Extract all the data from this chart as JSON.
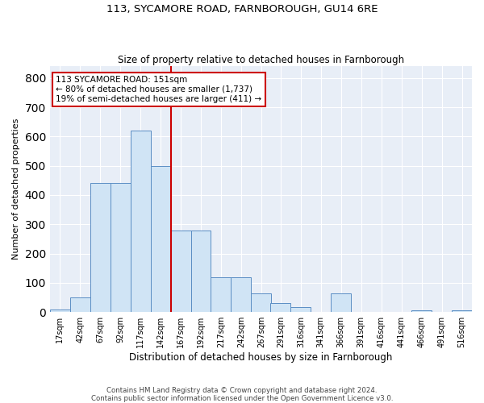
{
  "title": "113, SYCAMORE ROAD, FARNBOROUGH, GU14 6RE",
  "subtitle": "Size of property relative to detached houses in Farnborough",
  "xlabel": "Distribution of detached houses by size in Farnborough",
  "ylabel": "Number of detached properties",
  "bins_start": [
    17,
    42,
    67,
    92,
    117,
    142,
    167,
    192,
    217,
    242,
    267,
    291,
    316,
    341,
    366,
    391,
    416,
    441,
    466,
    491,
    516
  ],
  "counts": [
    10,
    50,
    440,
    440,
    620,
    500,
    280,
    280,
    120,
    120,
    65,
    30,
    18,
    0,
    65,
    0,
    0,
    0,
    7,
    0,
    5
  ],
  "bin_width": 25,
  "bar_facecolor": "#d0e4f5",
  "bar_edgecolor": "#5b8ec4",
  "vline_x": 167,
  "vline_color": "#cc0000",
  "annotation_text": "113 SYCAMORE ROAD: 151sqm\n← 80% of detached houses are smaller (1,737)\n19% of semi-detached houses are larger (411) →",
  "annotation_box_facecolor": "#ffffff",
  "annotation_box_edgecolor": "#cc0000",
  "yticks": [
    0,
    100,
    200,
    300,
    400,
    500,
    600,
    700,
    800
  ],
  "ylim": [
    0,
    840
  ],
  "xlim_left": 17,
  "xlim_right": 541,
  "grid_color": "#ffffff",
  "bg_color": "#e8eef7",
  "footnote": "Contains HM Land Registry data © Crown copyright and database right 2024.\nContains public sector information licensed under the Open Government Licence v3.0."
}
